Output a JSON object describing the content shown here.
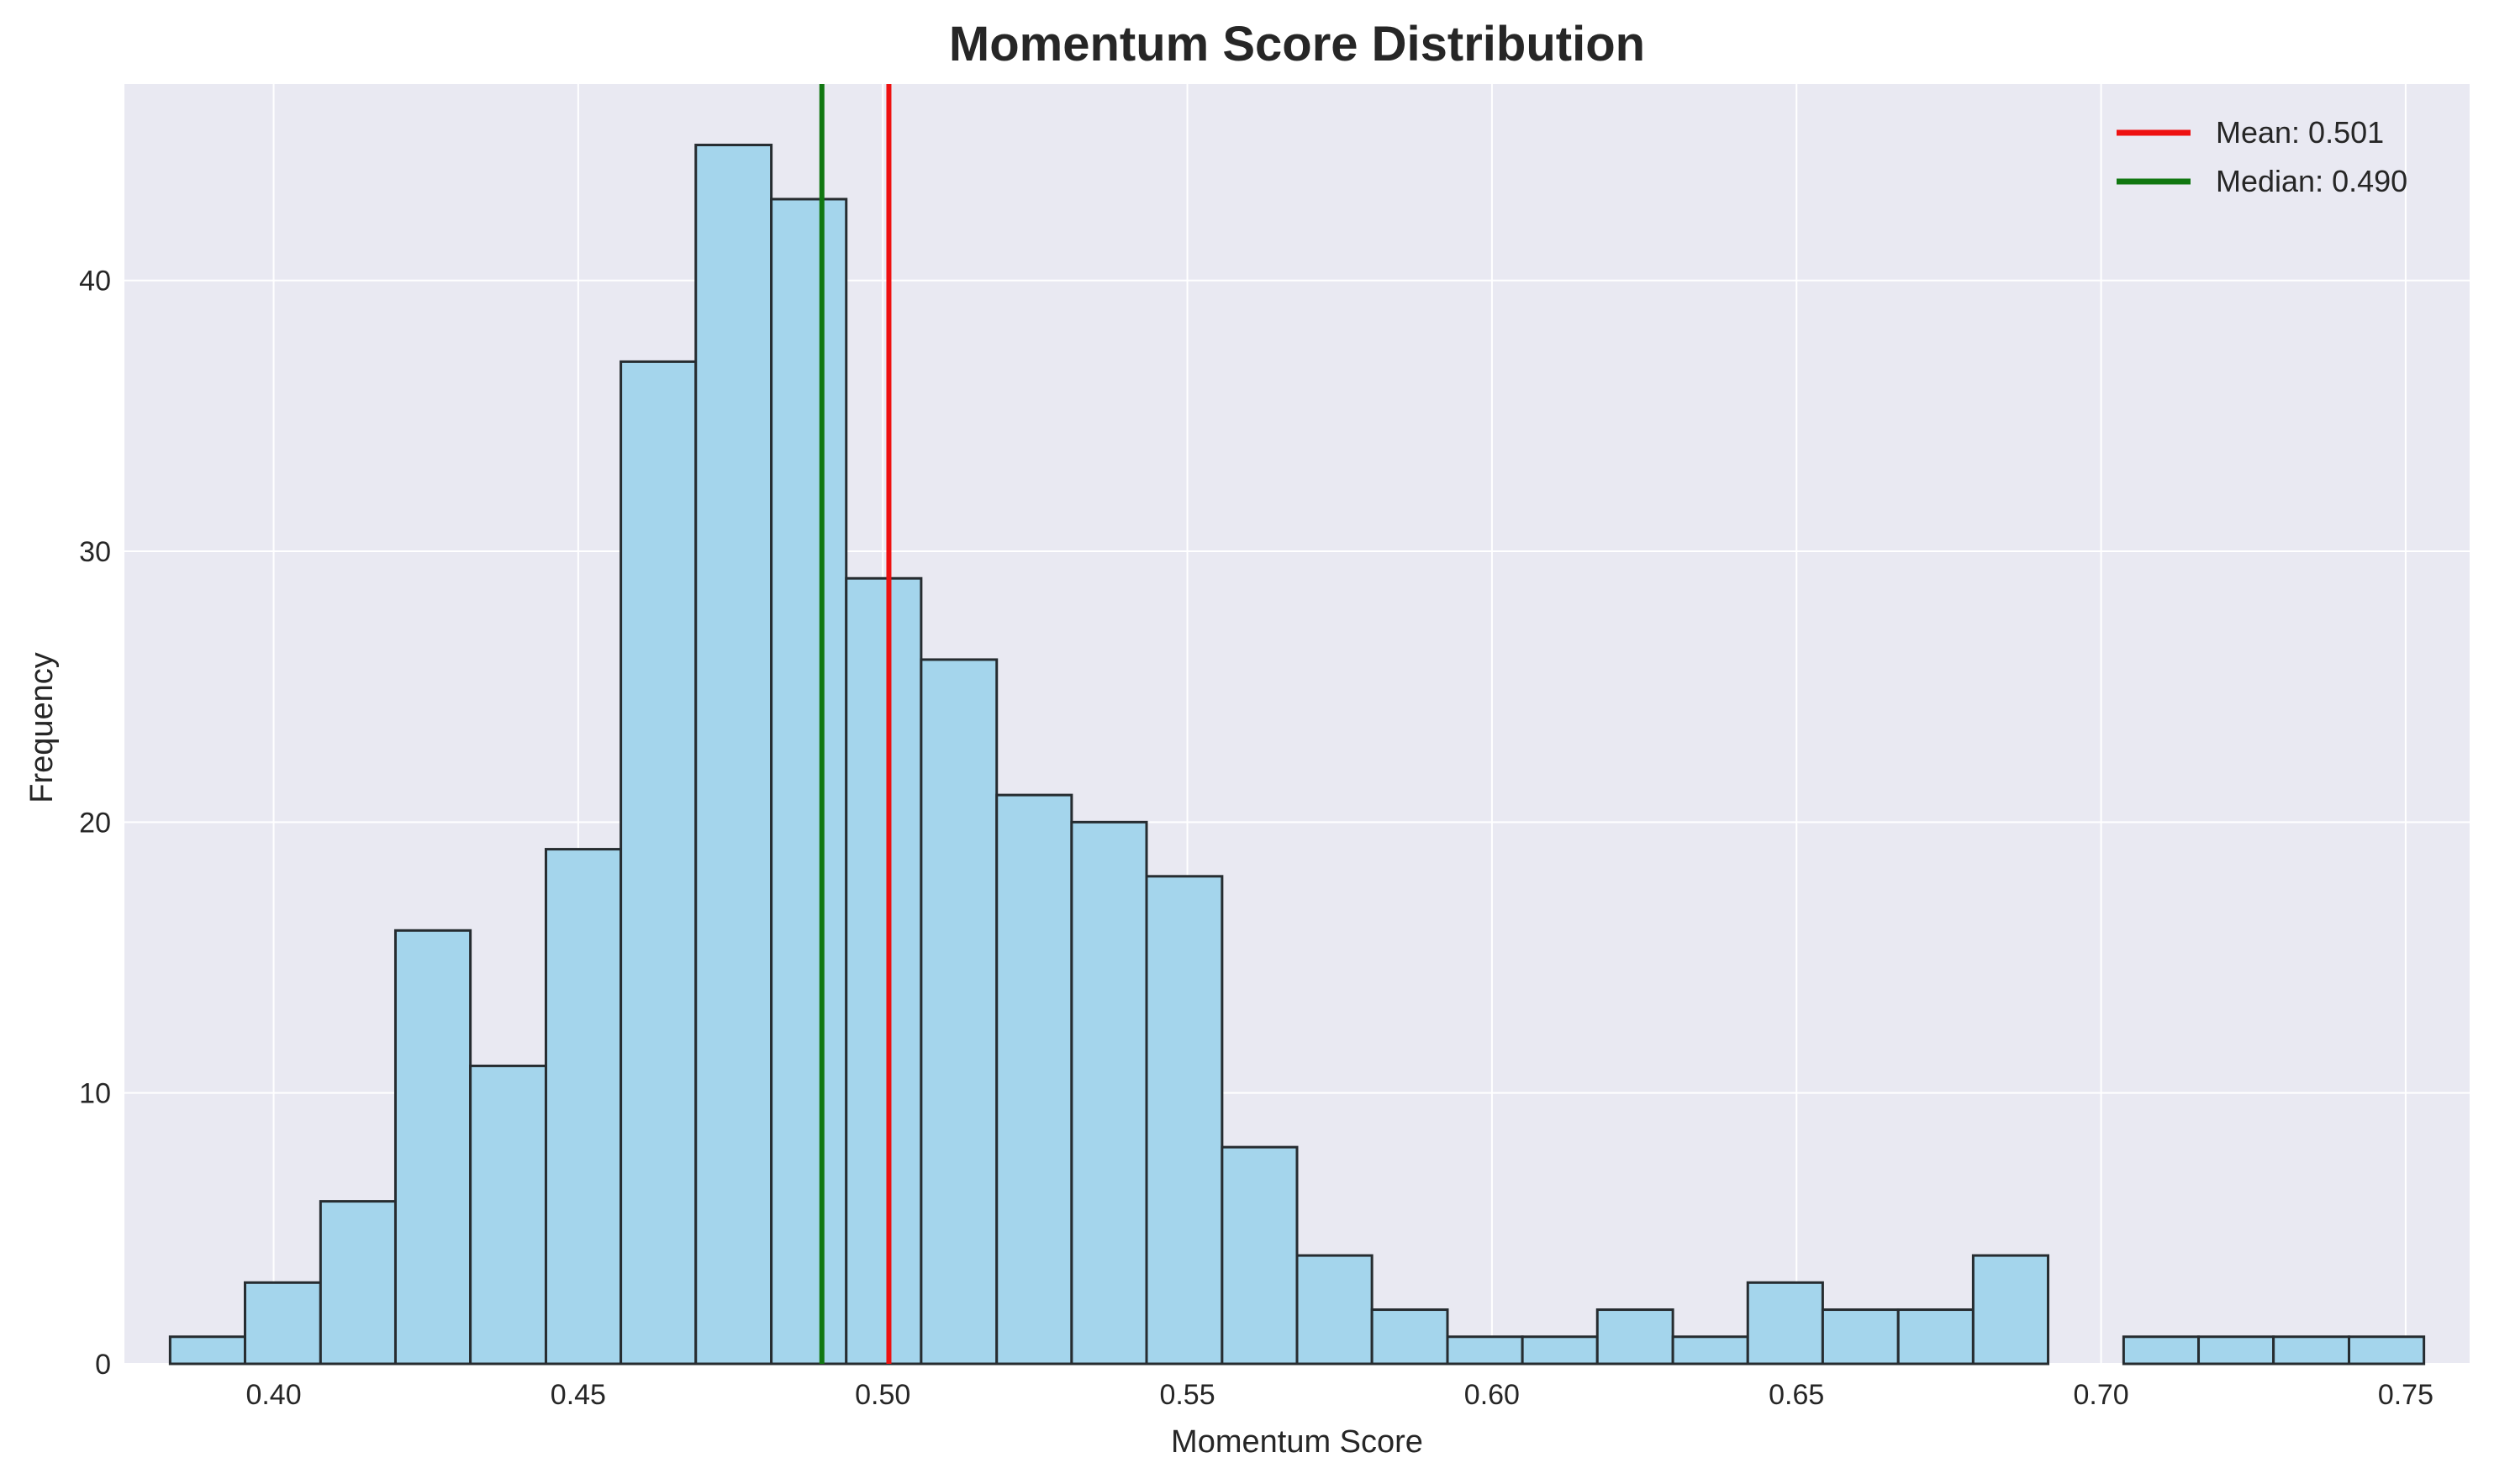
{
  "chart_data": {
    "type": "bar",
    "title": "Momentum Score Distribution",
    "xlabel": "Momentum Score",
    "ylabel": "Frequency",
    "xlim": [
      0.3755,
      0.7605
    ],
    "ylim": [
      0,
      47.25
    ],
    "xticks": [
      0.4,
      0.45,
      0.5,
      0.55,
      0.6,
      0.65,
      0.7,
      0.75
    ],
    "xtick_labels": [
      "0.40",
      "0.45",
      "0.50",
      "0.55",
      "0.60",
      "0.65",
      "0.70",
      "0.75"
    ],
    "yticks": [
      0,
      10,
      20,
      30,
      40
    ],
    "ytick_labels": [
      "0",
      "10",
      "20",
      "30",
      "40"
    ],
    "bin_edges": [
      0.383,
      0.3953,
      0.4077,
      0.42,
      0.4323,
      0.4447,
      0.457,
      0.4693,
      0.4817,
      0.494,
      0.5063,
      0.5187,
      0.531,
      0.5433,
      0.5557,
      0.568,
      0.5803,
      0.5927,
      0.605,
      0.6173,
      0.6297,
      0.642,
      0.6543,
      0.6667,
      0.679,
      0.6913,
      0.7037,
      0.716,
      0.7283,
      0.7407,
      0.753
    ],
    "counts": [
      1,
      3,
      6,
      16,
      11,
      19,
      37,
      45,
      43,
      29,
      26,
      21,
      20,
      18,
      8,
      4,
      2,
      1,
      1,
      2,
      1,
      3,
      2,
      2,
      4,
      0,
      1,
      1,
      1,
      1
    ],
    "vlines": [
      {
        "label": "Mean: 0.501",
        "x": 0.501,
        "color": "#ee1111"
      },
      {
        "label": "Median: 0.490",
        "x": 0.49,
        "color": "#117711"
      }
    ],
    "grid": true,
    "legend": "top-right",
    "colors": {
      "bar_fill": "#a4d5ec",
      "bar_edge": "#262c30",
      "plot_background": "#e9e9f2",
      "grid": "#ffffff"
    }
  }
}
